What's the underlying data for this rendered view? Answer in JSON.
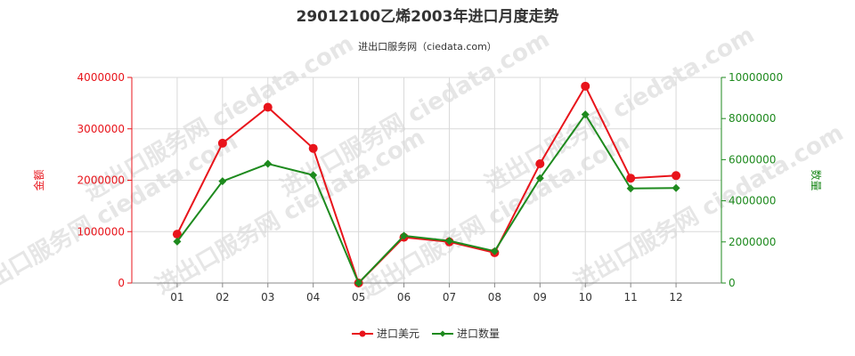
{
  "chart_data": {
    "type": "line",
    "title": "29012100乙烯2003年进口月度走势",
    "subtitle": "进出口服务网（ciedata.com）",
    "watermark": "进出口服务网 ciedata.com",
    "categories": [
      "01",
      "02",
      "03",
      "04",
      "05",
      "06",
      "07",
      "08",
      "09",
      "10",
      "11",
      "12"
    ],
    "y_left": {
      "label": "金额",
      "ylim": [
        0,
        4000000
      ],
      "ticks": [
        0,
        1000000,
        2000000,
        3000000,
        4000000
      ],
      "color": "#e8141b"
    },
    "y_right": {
      "label": "数量",
      "ylim": [
        0,
        10000000
      ],
      "ticks": [
        0,
        2000000,
        4000000,
        6000000,
        8000000,
        10000000
      ],
      "color": "#1e8a1e"
    },
    "series": [
      {
        "name": "进口美元",
        "axis": "left",
        "color": "#e8141b",
        "marker": "circle",
        "values": [
          950000,
          2720000,
          3420000,
          2620000,
          0,
          890000,
          800000,
          590000,
          2320000,
          3830000,
          2040000,
          2090000
        ]
      },
      {
        "name": "进口数量",
        "axis": "right",
        "color": "#1e8a1e",
        "marker": "diamond",
        "values": [
          2020000,
          4950000,
          5800000,
          5250000,
          0,
          2300000,
          2050000,
          1550000,
          5100000,
          8200000,
          4600000,
          4620000
        ]
      }
    ],
    "grid": true,
    "legend_position": "bottom-center"
  }
}
